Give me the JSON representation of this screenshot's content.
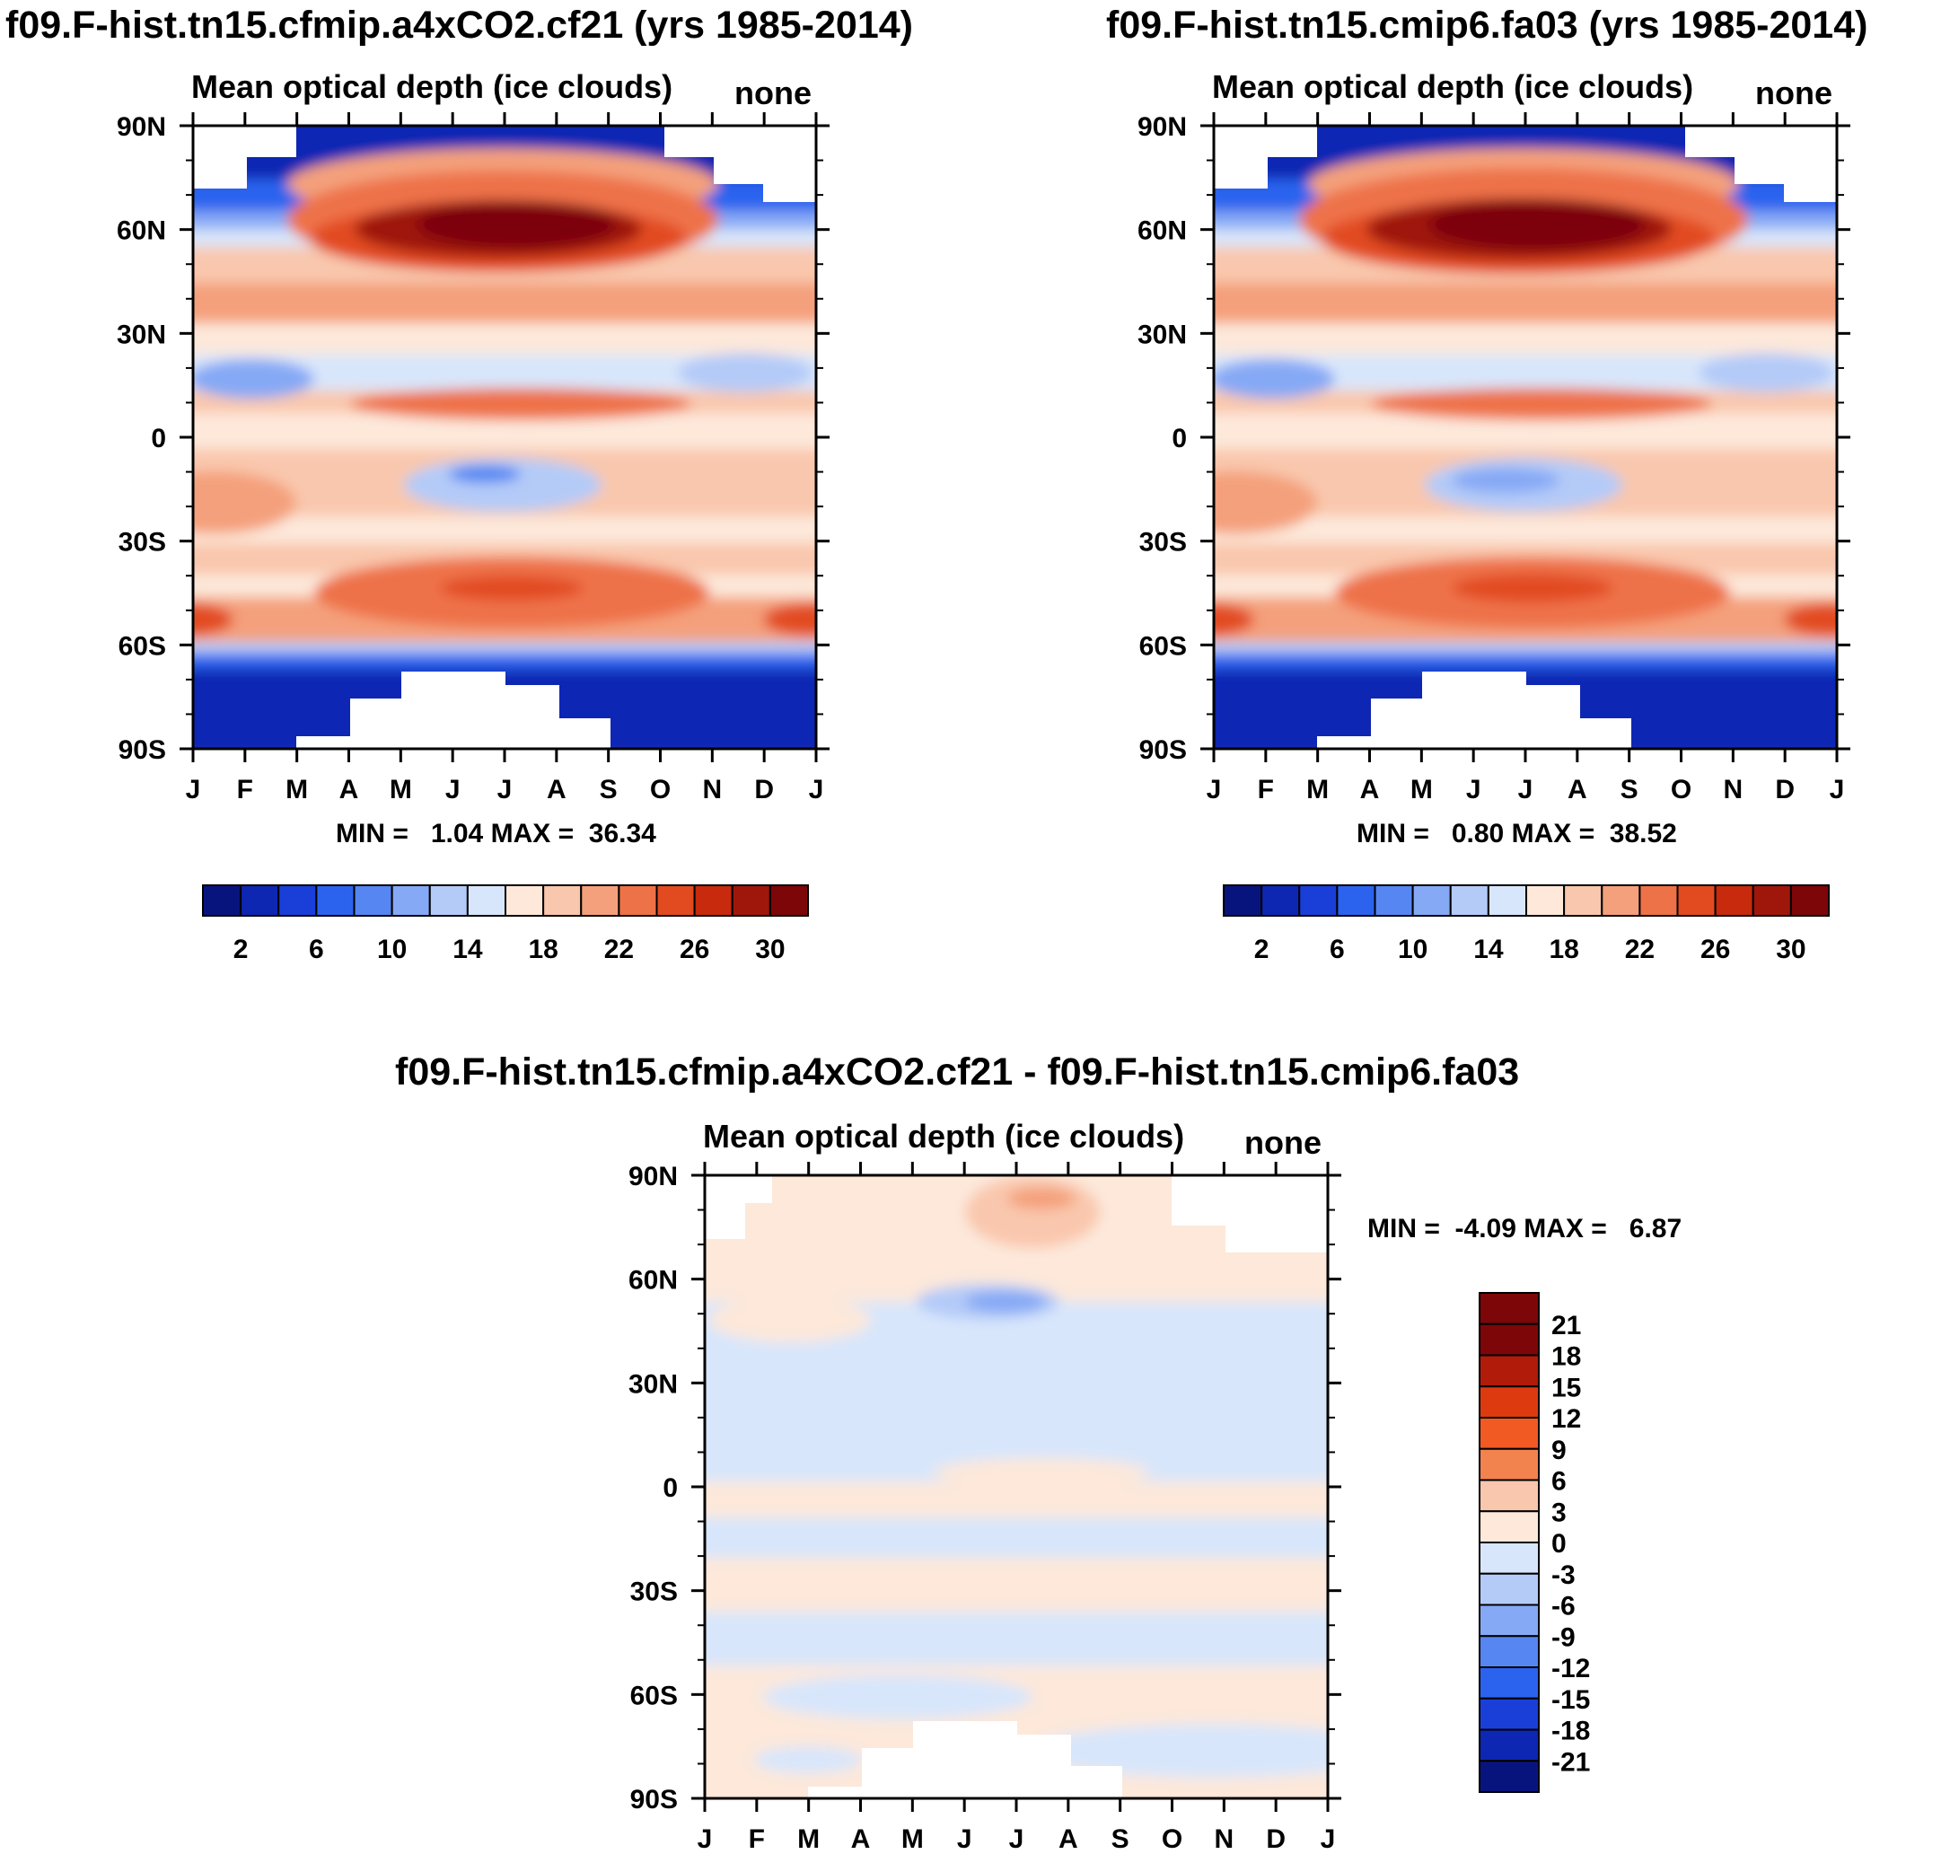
{
  "figure": {
    "left_title": "f09.F-hist.tn15.cfmip.a4xCO2.cf21 (yrs 1985-2014)",
    "right_title": "f09.F-hist.tn15.cmip6.fa03 (yrs 1985-2014)",
    "diff_title": "f09.F-hist.tn15.cfmip.a4xCO2.cf21 - f09.F-hist.tn15.cmip6.fa03"
  },
  "colors": {
    "abs_levels": [
      "#08147e",
      "#0d27b3",
      "#1a3fd9",
      "#2b63ee",
      "#5586f2",
      "#86a9f5",
      "#b4cbf8",
      "#d8e6fb",
      "#fde8da",
      "#f9c7ad",
      "#f4a07c",
      "#ee7248",
      "#e24b20",
      "#c72a0c",
      "#9f170b",
      "#7d0608"
    ],
    "diff_levels": [
      "#7d0608",
      "#b01b0a",
      "#de3a0f",
      "#f25a24",
      "#f2834f",
      "#f9c7ad",
      "#fde8da",
      "#d8e6fb",
      "#b4cbf8",
      "#86a9f5",
      "#5586f2",
      "#2b63ee",
      "#1a3fd9",
      "#0d27b3",
      "#08147e"
    ]
  },
  "chart_data": [
    {
      "type": "heatmap",
      "id": "panel_a",
      "subtitle": "Mean optical depth (ice clouds)",
      "units": "none",
      "x_ticks": [
        "J",
        "F",
        "M",
        "A",
        "M",
        "J",
        "J",
        "A",
        "S",
        "O",
        "N",
        "D",
        "J"
      ],
      "y_ticks": [
        "90N",
        "60N",
        "30N",
        "0",
        "30S",
        "60S",
        "90S"
      ],
      "ylim": [
        -90,
        90
      ],
      "stats": "MIN =   1.04 MAX =  36.34",
      "min": 1.04,
      "max": 36.34,
      "colorbar_labels": [
        "2",
        "6",
        "10",
        "14",
        "18",
        "22",
        "26",
        "30"
      ],
      "colorbar_levels": [
        2,
        4,
        6,
        8,
        10,
        12,
        14,
        16,
        18,
        20,
        22,
        24,
        26,
        28,
        30
      ]
    },
    {
      "type": "heatmap",
      "id": "panel_b",
      "subtitle": "Mean optical depth (ice clouds)",
      "units": "none",
      "x_ticks": [
        "J",
        "F",
        "M",
        "A",
        "M",
        "J",
        "J",
        "A",
        "S",
        "O",
        "N",
        "D",
        "J"
      ],
      "y_ticks": [
        "90N",
        "60N",
        "30N",
        "0",
        "30S",
        "60S",
        "90S"
      ],
      "ylim": [
        -90,
        90
      ],
      "stats": "MIN =   0.80 MAX =  38.52",
      "min": 0.8,
      "max": 38.52,
      "colorbar_labels": [
        "2",
        "6",
        "10",
        "14",
        "18",
        "22",
        "26",
        "30"
      ],
      "colorbar_levels": [
        2,
        4,
        6,
        8,
        10,
        12,
        14,
        16,
        18,
        20,
        22,
        24,
        26,
        28,
        30
      ]
    },
    {
      "type": "heatmap",
      "id": "panel_diff",
      "subtitle": "Mean optical depth (ice clouds)",
      "units": "none",
      "x_ticks": [
        "J",
        "F",
        "M",
        "A",
        "M",
        "J",
        "J",
        "A",
        "S",
        "O",
        "N",
        "D",
        "J"
      ],
      "y_ticks": [
        "90N",
        "60N",
        "30N",
        "0",
        "30S",
        "60S",
        "90S"
      ],
      "ylim": [
        -90,
        90
      ],
      "stats": "MIN =  -4.09 MAX =   6.87",
      "min": -4.09,
      "max": 6.87,
      "colorbar_labels": [
        "21",
        "18",
        "15",
        "12",
        "9",
        "6",
        "3",
        "0",
        "-3",
        "-6",
        "-9",
        "-12",
        "-15",
        "-18",
        "-21"
      ],
      "colorbar_levels": [
        21,
        18,
        15,
        12,
        9,
        6,
        3,
        0,
        -3,
        -6,
        -9,
        -12,
        -15,
        -18,
        -21
      ]
    }
  ]
}
